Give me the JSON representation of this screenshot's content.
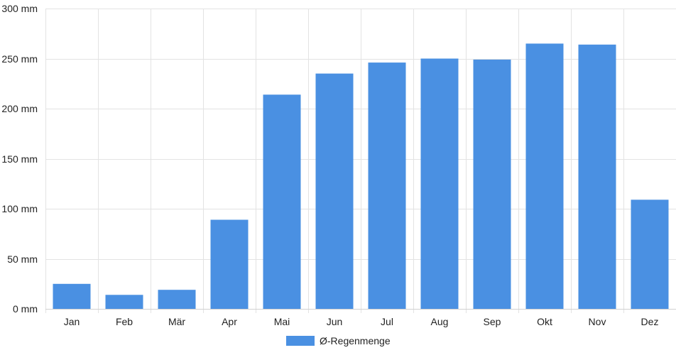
{
  "chart_data": {
    "type": "bar",
    "categories": [
      "Jan",
      "Feb",
      "Mär",
      "Apr",
      "Mai",
      "Jun",
      "Jul",
      "Aug",
      "Sep",
      "Okt",
      "Nov",
      "Dez"
    ],
    "series": [
      {
        "name": "Ø-Regenmenge",
        "values": [
          25,
          14,
          19,
          89,
          214,
          235,
          246,
          250,
          249,
          265,
          264,
          109
        ]
      }
    ],
    "ylim": [
      0,
      300
    ],
    "yticks": [
      0,
      50,
      100,
      150,
      200,
      250,
      300
    ],
    "ytick_labels": [
      "0 mm",
      "50 mm",
      "100 mm",
      "150 mm",
      "200 mm",
      "250 mm",
      "300 mm"
    ],
    "grid": true,
    "legend_position": "bottom-center",
    "bar_color": "#4a90e2",
    "grid_color": "#e3e3e3"
  },
  "legend": {
    "label": "Ø-Regenmenge"
  }
}
